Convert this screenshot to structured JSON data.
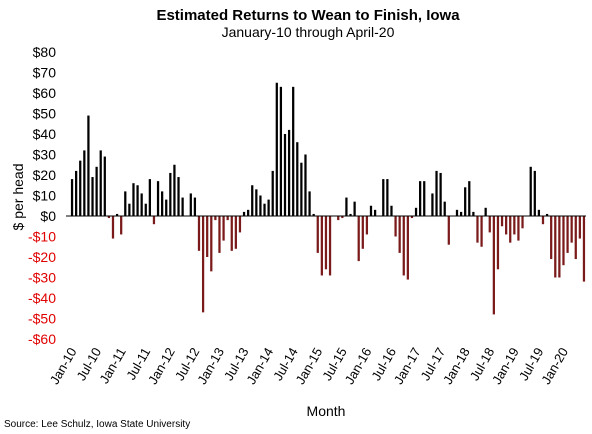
{
  "chart_data": {
    "type": "bar",
    "title": "Estimated Returns to Wean to Finish, Iowa",
    "subtitle": "January-10 through April-20",
    "xlabel": "Month",
    "ylabel": "$ per head",
    "ylim": [
      -60,
      80
    ],
    "yticks": [
      {
        "value": 80,
        "label": "$80"
      },
      {
        "value": 70,
        "label": "$70"
      },
      {
        "value": 60,
        "label": "$60"
      },
      {
        "value": 50,
        "label": "$50"
      },
      {
        "value": 40,
        "label": "$40"
      },
      {
        "value": 30,
        "label": "$30"
      },
      {
        "value": 20,
        "label": "$20"
      },
      {
        "value": 10,
        "label": "$10"
      },
      {
        "value": 0,
        "label": "$0"
      },
      {
        "value": -10,
        "label": "-$10"
      },
      {
        "value": -20,
        "label": "-$20"
      },
      {
        "value": -30,
        "label": "-$30"
      },
      {
        "value": -40,
        "label": "-$40"
      },
      {
        "value": -50,
        "label": "-$50"
      },
      {
        "value": -60,
        "label": "-$60"
      }
    ],
    "xticks": [
      "Jan-10",
      "Jul-10",
      "Jan-11",
      "Jul-11",
      "Jan-12",
      "Jul-12",
      "Jan-13",
      "Jul-13",
      "Jan-14",
      "Jul-14",
      "Jan-15",
      "Jul-15",
      "Jan-16",
      "Jul-16",
      "Jan-17",
      "Jul-17",
      "Jan-18",
      "Jul-18",
      "Jan-19",
      "Jul-19",
      "Jan-20"
    ],
    "xtick_interval_months": 6,
    "grid": false,
    "legend": "none",
    "colors": {
      "positive": "#000000",
      "negative": "#7b1a1a",
      "negative_tick_labels": "#e00000",
      "text": "#000000"
    },
    "values": [
      18,
      22,
      27,
      32,
      49,
      19,
      24,
      32,
      29,
      -1,
      -11,
      1,
      -9,
      12,
      6,
      16,
      15,
      11,
      6,
      18,
      -4,
      17,
      12,
      8,
      21,
      25,
      19,
      9,
      0,
      11,
      9,
      -17,
      -47,
      -20,
      -27,
      -2,
      -18,
      -12,
      -2,
      -17,
      -16,
      -8,
      2,
      3,
      15,
      13,
      10,
      6,
      8,
      22,
      65,
      63,
      40,
      42,
      63,
      36,
      26,
      30,
      12,
      1,
      -18,
      -29,
      -26,
      -29,
      0,
      -2,
      -1,
      9,
      1,
      7,
      -22,
      -16,
      -9,
      5,
      3,
      0,
      18,
      18,
      5,
      -10,
      -18,
      -29,
      -31,
      -1,
      4,
      17,
      17,
      0,
      11,
      22,
      21,
      7,
      -14,
      0,
      3,
      2,
      14,
      17,
      2,
      -13,
      -15,
      4,
      -8,
      -48,
      -26,
      -5,
      -9,
      -13,
      -9,
      -12,
      -6,
      0,
      24,
      22,
      3,
      -4,
      1,
      -21,
      -30,
      -30,
      -24,
      -18,
      -13,
      -21,
      -11,
      -32
    ],
    "source": "Source: Lee Schulz, Iowa State University"
  }
}
